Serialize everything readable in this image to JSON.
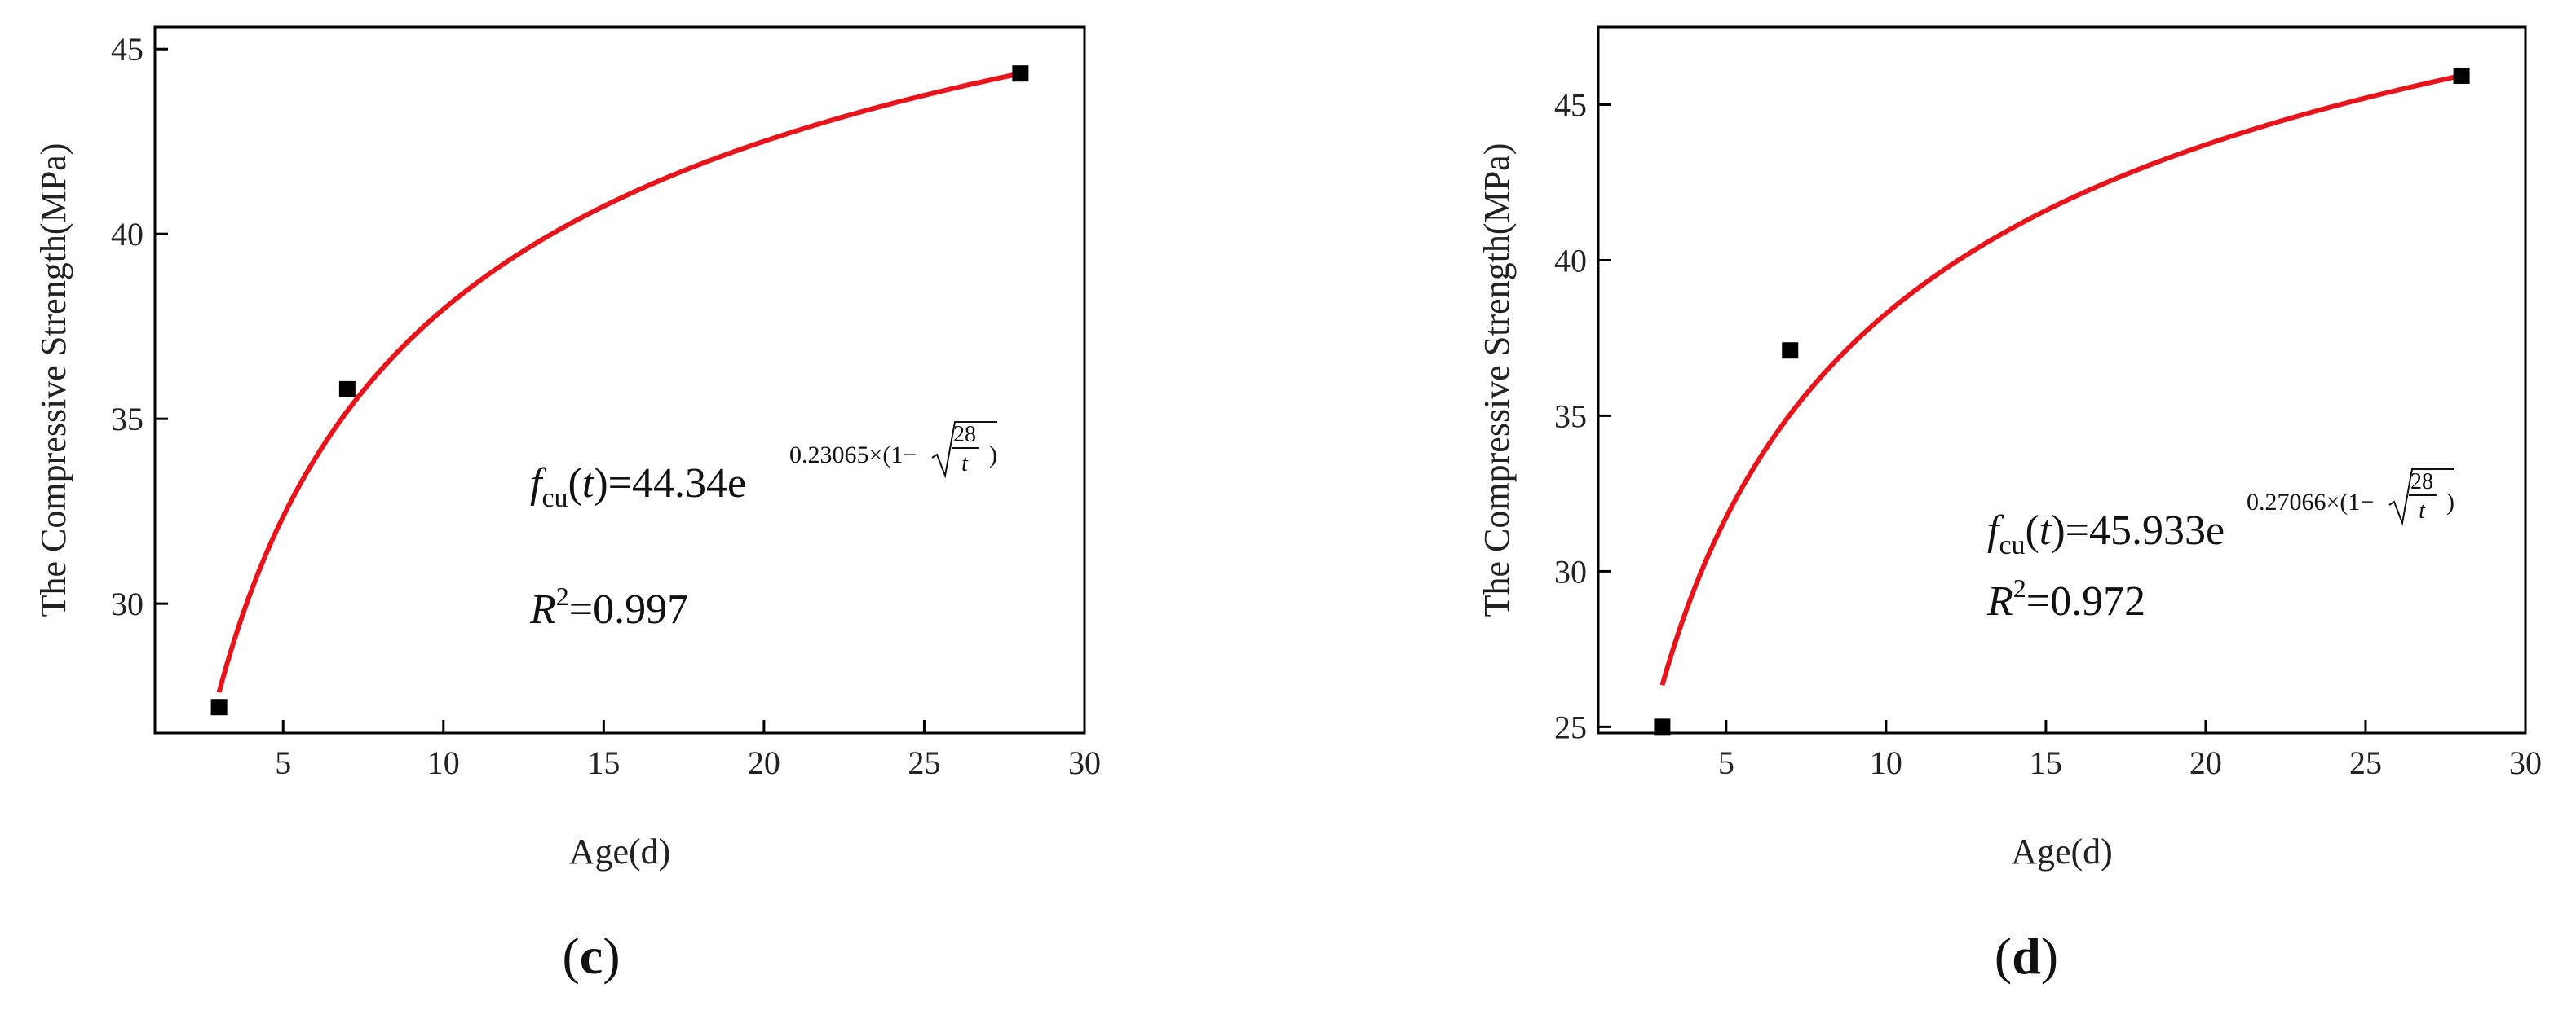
{
  "chart_data": [
    {
      "type": "scatter",
      "panel_label_open": "(",
      "panel_label_letter": "c",
      "panel_label_close": ")",
      "xlabel": "Age(d)",
      "ylabel": "The Compressive Strength(MPa)",
      "xlim": [
        1,
        30
      ],
      "ylim": [
        26.5,
        45.6
      ],
      "xticks": [
        5,
        10,
        15,
        20,
        25,
        30
      ],
      "yticks": [
        30,
        35,
        40,
        45
      ],
      "grid": false,
      "legend": "none",
      "series": [
        {
          "points": [
            {
              "x": 3,
              "y": 27.2
            },
            {
              "x": 7,
              "y": 35.8
            },
            {
              "x": 28,
              "y": 44.34
            }
          ],
          "marker": "square",
          "color": "#000000"
        }
      ],
      "fit": {
        "a": 44.34,
        "b": 0.23065,
        "x_from": 3,
        "x_to": 28,
        "color": "#e8141c"
      },
      "equation": {
        "f": "f",
        "sub": "cu",
        "paren_open": "(",
        "t": "t",
        "paren_close": ")",
        "rhs": "=44.34e",
        "exp_coef": "0.23065×(1−",
        "frac_num": "28",
        "frac_den": "t",
        "exp_close": ")"
      },
      "r2": {
        "r": "R",
        "sup": "2",
        "value": "=0.997"
      }
    },
    {
      "type": "scatter",
      "panel_label_open": "(",
      "panel_label_letter": "d",
      "panel_label_close": ")",
      "xlabel": "Age(d)",
      "ylabel": "The Compressive Strength(MPa)",
      "xlim": [
        1,
        30
      ],
      "ylim": [
        24.8,
        47.5
      ],
      "xticks": [
        5,
        10,
        15,
        20,
        25,
        30
      ],
      "yticks": [
        25,
        30,
        35,
        40,
        45
      ],
      "grid": false,
      "legend": "none",
      "series": [
        {
          "points": [
            {
              "x": 3,
              "y": 25.0
            },
            {
              "x": 7,
              "y": 37.1
            },
            {
              "x": 28,
              "y": 45.93
            }
          ],
          "marker": "square",
          "color": "#000000"
        }
      ],
      "fit": {
        "a": 45.933,
        "b": 0.27066,
        "x_from": 3,
        "x_to": 28,
        "color": "#e8141c"
      },
      "equation": {
        "f": "f",
        "sub": "cu",
        "paren_open": "(",
        "t": "t",
        "paren_close": ")",
        "rhs": "=45.933e",
        "exp_coef": "0.27066×(1−",
        "frac_num": "28",
        "frac_den": "t",
        "exp_close": ")"
      },
      "r2": {
        "r": "R",
        "sup": "2",
        "value": "=0.972"
      }
    }
  ]
}
